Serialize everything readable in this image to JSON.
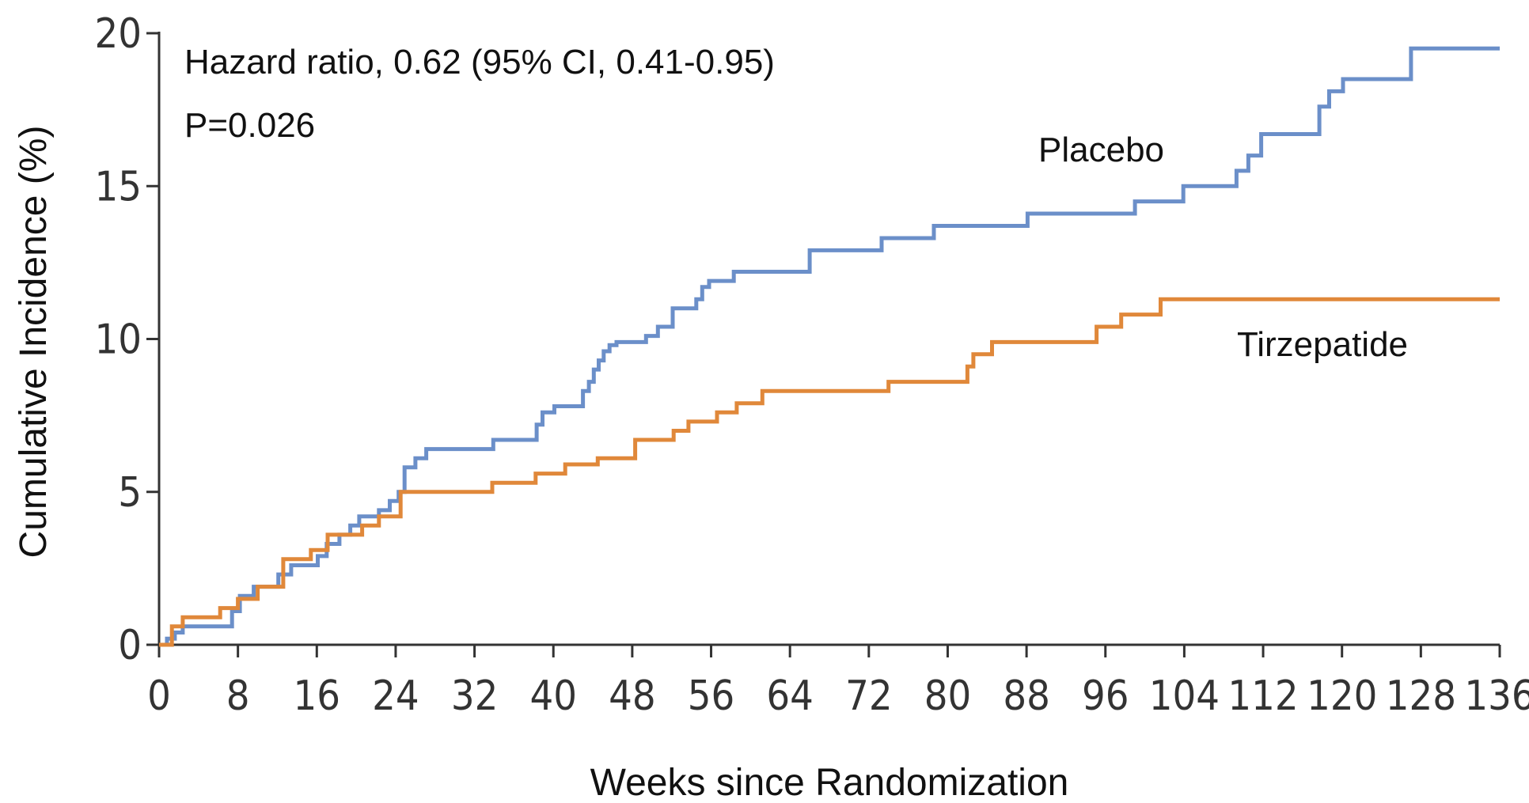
{
  "chart_data": {
    "type": "line",
    "step": true,
    "title": "",
    "xlabel": "Weeks since Randomization",
    "ylabel": "Cumulative Incidence (%)",
    "xlim": [
      0,
      136
    ],
    "ylim": [
      0,
      20
    ],
    "xticks": [
      0,
      8,
      16,
      24,
      32,
      40,
      48,
      56,
      64,
      72,
      80,
      88,
      96,
      104,
      112,
      120,
      128,
      136
    ],
    "yticks": [
      0,
      5,
      10,
      15,
      20
    ],
    "annotations": [
      "Hazard ratio, 0.62 (95% CI, 0.41-0.95)",
      "P=0.026"
    ],
    "series": [
      {
        "name": "Placebo",
        "color": "#6b8fc9",
        "x": [
          0,
          0.8,
          1.6,
          2.4,
          7.4,
          8.2,
          9.6,
          12.1,
          13.4,
          16.1,
          17.0,
          18.3,
          19.4,
          20.3,
          22.3,
          23.4,
          24.3,
          24.9,
          26.0,
          27.1,
          33.9,
          38.3,
          38.9,
          40.1,
          43.0,
          43.6,
          44.1,
          44.6,
          45.1,
          45.7,
          46.4,
          49.4,
          50.6,
          52.1,
          54.5,
          55.1,
          55.8,
          58.3,
          66.0,
          73.3,
          78.6,
          88.1,
          99.0,
          103.9,
          109.3,
          110.5,
          111.8,
          117.7,
          118.7,
          120.1,
          127.0,
          136.0
        ],
        "y": [
          0,
          0.2,
          0.4,
          0.6,
          1.1,
          1.6,
          1.9,
          2.3,
          2.6,
          2.9,
          3.3,
          3.6,
          3.9,
          4.2,
          4.4,
          4.7,
          5.0,
          5.8,
          6.1,
          6.4,
          6.7,
          7.2,
          7.6,
          7.8,
          8.3,
          8.6,
          9.0,
          9.3,
          9.6,
          9.8,
          9.9,
          10.1,
          10.4,
          11.0,
          11.3,
          11.7,
          11.9,
          12.2,
          12.9,
          13.3,
          13.7,
          14.1,
          14.5,
          15.0,
          15.5,
          16.0,
          16.7,
          17.6,
          18.1,
          18.5,
          19.5,
          19.5
        ]
      },
      {
        "name": "Tirzepatide",
        "color": "#e0883a",
        "x": [
          0,
          1.3,
          2.4,
          6.2,
          8.0,
          10.0,
          12.6,
          15.4,
          17.1,
          20.6,
          22.3,
          24.5,
          33.8,
          38.2,
          41.2,
          44.5,
          48.3,
          52.2,
          53.7,
          56.6,
          58.6,
          61.2,
          74.0,
          82.0,
          82.6,
          84.5,
          95.1,
          97.6,
          101.6,
          136.0
        ],
        "y": [
          0,
          0.6,
          0.9,
          1.2,
          1.5,
          1.9,
          2.8,
          3.1,
          3.6,
          3.9,
          4.2,
          5.0,
          5.3,
          5.6,
          5.9,
          6.1,
          6.7,
          7.0,
          7.3,
          7.6,
          7.9,
          8.3,
          8.6,
          9.1,
          9.5,
          9.9,
          10.4,
          10.8,
          11.3,
          11.3
        ]
      }
    ],
    "series_labels": [
      "Placebo",
      "Tirzepatide"
    ]
  }
}
